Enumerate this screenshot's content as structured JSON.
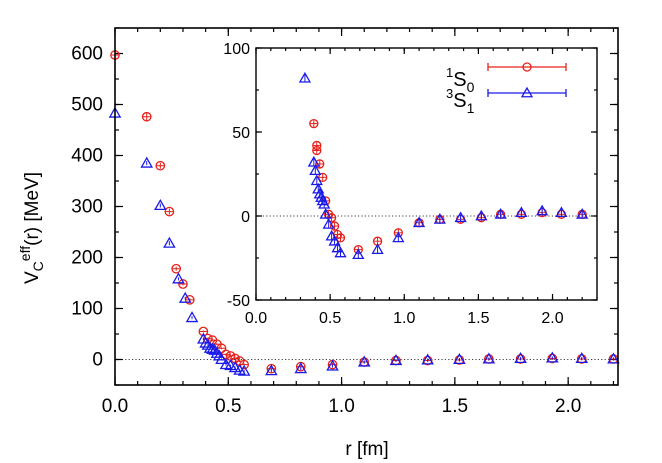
{
  "chart_data": [
    {
      "type": "scatter",
      "title": "",
      "xlabel": "r [fm]",
      "ylabel": "V_C^eff(r) [MeV]",
      "xlim": [
        0.0,
        2.22
      ],
      "ylim": [
        -50,
        650
      ],
      "x_ticks": [
        0.0,
        0.5,
        1.0,
        1.5,
        2.0
      ],
      "x_tick_labels": [
        "0.0",
        "0.5",
        "1.0",
        "1.5",
        "2.0"
      ],
      "y_ticks": [
        0,
        100,
        200,
        300,
        400,
        500,
        600
      ],
      "y_tick_labels": [
        "0",
        "100",
        "200",
        "300",
        "400",
        "500",
        "600"
      ],
      "zero_line": true,
      "grid": false,
      "series": [
        {
          "name": "1S0",
          "marker": "circle",
          "color": "#e8201a",
          "x": [
            0.0,
            0.14,
            0.2,
            0.24,
            0.27,
            0.3,
            0.33,
            0.39,
            0.41,
            0.43,
            0.45,
            0.47,
            0.49,
            0.51,
            0.53,
            0.55,
            0.57,
            0.69,
            0.82,
            0.96,
            1.1,
            1.24,
            1.38,
            1.52,
            1.65,
            1.79,
            1.93,
            2.06,
            2.2
          ],
          "y": [
            597,
            476,
            380,
            290,
            178,
            148,
            117,
            55,
            41,
            38,
            30,
            22,
            10,
            7,
            2,
            -3,
            -10,
            -18,
            -14,
            -10,
            -5,
            -2,
            -2,
            -1,
            1,
            1,
            2,
            1,
            1
          ],
          "yerr": [
            4,
            8,
            6,
            6,
            4,
            3,
            3,
            2,
            2,
            2,
            2,
            2,
            2,
            2,
            2,
            2,
            2,
            3,
            3,
            3,
            3,
            3,
            3,
            3,
            3,
            3,
            3,
            3,
            3
          ]
        },
        {
          "name": "3S1",
          "marker": "triangle",
          "color": "#1a1ae8",
          "x": [
            0.0,
            0.14,
            0.2,
            0.24,
            0.28,
            0.31,
            0.34,
            0.39,
            0.4,
            0.41,
            0.42,
            0.43,
            0.44,
            0.45,
            0.46,
            0.47,
            0.49,
            0.51,
            0.53,
            0.55,
            0.57,
            0.69,
            0.82,
            0.96,
            1.1,
            1.24,
            1.38,
            1.52,
            1.65,
            1.79,
            1.93,
            2.06,
            2.2
          ],
          "y": [
            483,
            385,
            302,
            228,
            158,
            120,
            82,
            40,
            32,
            28,
            22,
            20,
            18,
            12,
            7,
            0,
            -10,
            -12,
            -16,
            -21,
            -23,
            -22,
            -18,
            -13,
            -5,
            -2,
            -1,
            0,
            1,
            2,
            3,
            2,
            1
          ],
          "yerr": [
            4,
            4,
            4,
            4,
            3,
            3,
            3,
            2,
            2,
            2,
            2,
            2,
            2,
            2,
            2,
            2,
            2,
            2,
            2,
            2,
            2,
            3,
            3,
            3,
            3,
            3,
            3,
            3,
            3,
            3,
            3,
            3,
            3
          ]
        }
      ]
    },
    {
      "type": "scatter",
      "title": "",
      "xlabel": "",
      "ylabel": "",
      "xlim": [
        0.0,
        2.3
      ],
      "ylim": [
        -50,
        100
      ],
      "x_ticks": [
        0.0,
        0.5,
        1.0,
        1.5,
        2.0
      ],
      "x_tick_labels": [
        "0.0",
        "0.5",
        "1.0",
        "1.5",
        "2.0"
      ],
      "y_ticks": [
        -50,
        0,
        50,
        100
      ],
      "y_tick_labels": [
        "-50",
        "0",
        "50",
        "100"
      ],
      "zero_line": true,
      "legend_position": "top-right",
      "series": [
        {
          "name": "1S0",
          "marker": "circle",
          "color": "#e8201a",
          "x": [
            0.39,
            0.41,
            0.41,
            0.43,
            0.45,
            0.47,
            0.49,
            0.51,
            0.53,
            0.55,
            0.57,
            0.69,
            0.82,
            0.96,
            1.1,
            1.24,
            1.38,
            1.52,
            1.65,
            1.79,
            1.93,
            2.06,
            2.2
          ],
          "y": [
            55,
            42,
            39,
            31,
            23,
            9,
            1,
            -1,
            -6,
            -11,
            -13,
            -20,
            -15,
            -10,
            -4,
            -2,
            -2,
            -1,
            1,
            1,
            2,
            1,
            1
          ],
          "yerr": [
            2,
            2,
            2,
            2,
            2,
            2,
            2,
            2,
            2,
            2,
            2,
            2,
            2,
            2,
            2,
            2,
            2,
            2,
            2,
            2,
            2,
            2,
            2
          ]
        },
        {
          "name": "3S1",
          "marker": "triangle",
          "color": "#1a1ae8",
          "x": [
            0.33,
            0.39,
            0.4,
            0.41,
            0.42,
            0.43,
            0.44,
            0.45,
            0.46,
            0.47,
            0.49,
            0.51,
            0.53,
            0.55,
            0.57,
            0.69,
            0.82,
            0.96,
            1.1,
            1.24,
            1.38,
            1.52,
            1.65,
            1.79,
            1.93,
            2.06,
            2.2
          ],
          "y": [
            82,
            32,
            27,
            21,
            16,
            13,
            11,
            9,
            7,
            1,
            -5,
            -12,
            -15,
            -19,
            -22,
            -23,
            -20,
            -13,
            -4,
            -2,
            -1,
            0,
            1,
            2,
            3,
            2,
            1
          ],
          "yerr": [
            2,
            2,
            2,
            2,
            2,
            2,
            2,
            2,
            2,
            2,
            2,
            2,
            2,
            2,
            2,
            2,
            2,
            2,
            2,
            2,
            2,
            2,
            2,
            2,
            2,
            2,
            2
          ]
        }
      ]
    }
  ],
  "legend": {
    "items": [
      {
        "base": "S",
        "sup": "1",
        "sub": "0",
        "marker": "circle",
        "color": "#e8201a"
      },
      {
        "base": "S",
        "sup": "3",
        "sub": "1",
        "marker": "triangle",
        "color": "#1a1ae8"
      }
    ]
  },
  "labels": {
    "xlabel": "r [fm]",
    "ylabel_base": "V",
    "ylabel_sub": "C",
    "ylabel_sup": "eff",
    "ylabel_rest": "(r) [MeV]"
  }
}
